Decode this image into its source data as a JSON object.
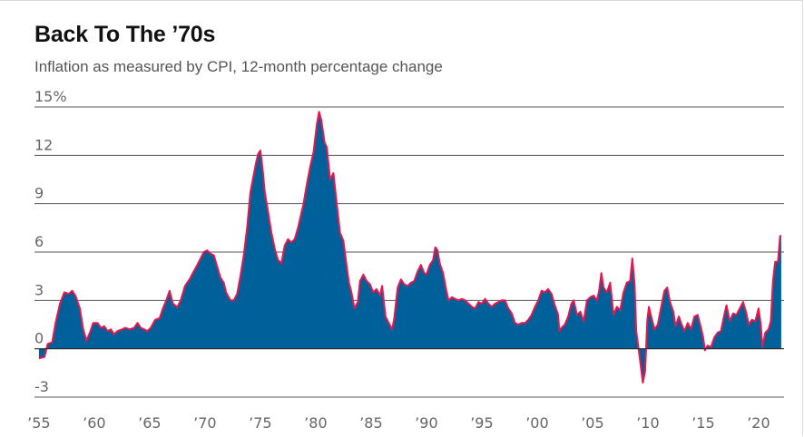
{
  "header": {
    "title": "Back To The ’70s",
    "subtitle": "Inflation as measured by CPI, 12-month percentage change"
  },
  "chart_data": {
    "type": "area",
    "title": "Back To The ’70s",
    "subtitle": "Inflation as measured by CPI, 12-month percentage change",
    "xlabel": "",
    "ylabel": "",
    "xlim": [
      1954.6,
      2022.3
    ],
    "ylim": [
      -3,
      15
    ],
    "y_ticks": [
      {
        "value": 15,
        "label": "15%"
      },
      {
        "value": 12,
        "label": "12"
      },
      {
        "value": 9,
        "label": "9"
      },
      {
        "value": 6,
        "label": "6"
      },
      {
        "value": 3,
        "label": "3"
      },
      {
        "value": 0,
        "label": "0"
      },
      {
        "value": -3,
        "label": "-3"
      }
    ],
    "x_ticks": [
      {
        "value": 1955,
        "label": "’55"
      },
      {
        "value": 1960,
        "label": "’60"
      },
      {
        "value": 1965,
        "label": "’65"
      },
      {
        "value": 1970,
        "label": "’70"
      },
      {
        "value": 1975,
        "label": "’75"
      },
      {
        "value": 1980,
        "label": "’80"
      },
      {
        "value": 1985,
        "label": "’85"
      },
      {
        "value": 1990,
        "label": "’90"
      },
      {
        "value": 1995,
        "label": "’95"
      },
      {
        "value": 2000,
        "label": "’00"
      },
      {
        "value": 2005,
        "label": "’05"
      },
      {
        "value": 2010,
        "label": "’10"
      },
      {
        "value": 2015,
        "label": "’15"
      },
      {
        "value": 2020,
        "label": "’20"
      }
    ],
    "grid": true,
    "colors": {
      "fill": "#00609a",
      "line": "#e8174d",
      "grid": "#5a5a5a",
      "zero": "#2a2a2a"
    },
    "series": [
      {
        "name": "CPI 12-month % change",
        "points": [
          [
            1955.0,
            -0.6
          ],
          [
            1955.5,
            -0.5
          ],
          [
            1955.8,
            0.3
          ],
          [
            1956.2,
            0.4
          ],
          [
            1956.5,
            1.6
          ],
          [
            1956.9,
            2.8
          ],
          [
            1957.3,
            3.5
          ],
          [
            1957.7,
            3.4
          ],
          [
            1958.0,
            3.6
          ],
          [
            1958.3,
            3.3
          ],
          [
            1958.7,
            2.5
          ],
          [
            1959.0,
            1.2
          ],
          [
            1959.3,
            0.5
          ],
          [
            1959.6,
            1.0
          ],
          [
            1959.9,
            1.6
          ],
          [
            1960.3,
            1.6
          ],
          [
            1960.6,
            1.3
          ],
          [
            1960.9,
            1.4
          ],
          [
            1961.2,
            1.1
          ],
          [
            1961.5,
            1.2
          ],
          [
            1961.8,
            0.9
          ],
          [
            1962.1,
            1.1
          ],
          [
            1962.5,
            1.2
          ],
          [
            1962.8,
            1.3
          ],
          [
            1963.2,
            1.2
          ],
          [
            1963.6,
            1.3
          ],
          [
            1963.9,
            1.6
          ],
          [
            1964.2,
            1.3
          ],
          [
            1964.5,
            1.2
          ],
          [
            1964.8,
            1.1
          ],
          [
            1965.1,
            1.3
          ],
          [
            1965.5,
            1.8
          ],
          [
            1965.9,
            1.9
          ],
          [
            1966.2,
            2.5
          ],
          [
            1966.5,
            3.0
          ],
          [
            1966.8,
            3.6
          ],
          [
            1967.1,
            2.8
          ],
          [
            1967.5,
            2.6
          ],
          [
            1967.8,
            3.0
          ],
          [
            1968.2,
            3.9
          ],
          [
            1968.6,
            4.3
          ],
          [
            1968.9,
            4.7
          ],
          [
            1969.3,
            5.2
          ],
          [
            1969.6,
            5.6
          ],
          [
            1969.9,
            6.0
          ],
          [
            1970.2,
            6.1
          ],
          [
            1970.5,
            5.9
          ],
          [
            1970.8,
            5.8
          ],
          [
            1971.1,
            5.1
          ],
          [
            1971.4,
            4.4
          ],
          [
            1971.7,
            4.1
          ],
          [
            1971.9,
            3.5
          ],
          [
            1972.3,
            3.0
          ],
          [
            1972.6,
            3.0
          ],
          [
            1972.9,
            3.4
          ],
          [
            1973.2,
            4.5
          ],
          [
            1973.5,
            5.8
          ],
          [
            1973.8,
            7.5
          ],
          [
            1974.1,
            9.7
          ],
          [
            1974.4,
            10.8
          ],
          [
            1974.6,
            11.5
          ],
          [
            1974.8,
            12.1
          ],
          [
            1975.0,
            12.3
          ],
          [
            1975.2,
            11.2
          ],
          [
            1975.4,
            9.7
          ],
          [
            1975.7,
            8.5
          ],
          [
            1976.0,
            7.2
          ],
          [
            1976.3,
            6.2
          ],
          [
            1976.6,
            5.5
          ],
          [
            1976.9,
            5.3
          ],
          [
            1977.2,
            6.4
          ],
          [
            1977.5,
            6.8
          ],
          [
            1977.8,
            6.6
          ],
          [
            1978.1,
            6.8
          ],
          [
            1978.4,
            7.5
          ],
          [
            1978.7,
            8.4
          ],
          [
            1978.9,
            9.0
          ],
          [
            1979.2,
            10.2
          ],
          [
            1979.5,
            11.3
          ],
          [
            1979.8,
            12.2
          ],
          [
            1980.1,
            13.9
          ],
          [
            1980.3,
            14.7
          ],
          [
            1980.5,
            14.2
          ],
          [
            1980.8,
            12.8
          ],
          [
            1981.0,
            12.5
          ],
          [
            1981.3,
            10.5
          ],
          [
            1981.6,
            10.9
          ],
          [
            1981.9,
            9.0
          ],
          [
            1982.2,
            7.2
          ],
          [
            1982.5,
            6.7
          ],
          [
            1982.8,
            5.1
          ],
          [
            1983.0,
            4.1
          ],
          [
            1983.2,
            3.6
          ],
          [
            1983.5,
            2.5
          ],
          [
            1983.8,
            2.9
          ],
          [
            1984.0,
            4.2
          ],
          [
            1984.3,
            4.6
          ],
          [
            1984.6,
            4.2
          ],
          [
            1984.9,
            4.0
          ],
          [
            1985.2,
            3.5
          ],
          [
            1985.5,
            3.7
          ],
          [
            1985.8,
            3.3
          ],
          [
            1986.0,
            3.9
          ],
          [
            1986.3,
            2.0
          ],
          [
            1986.6,
            1.6
          ],
          [
            1986.9,
            1.2
          ],
          [
            1987.1,
            1.9
          ],
          [
            1987.4,
            3.8
          ],
          [
            1987.7,
            4.3
          ],
          [
            1988.0,
            4.0
          ],
          [
            1988.3,
            3.9
          ],
          [
            1988.6,
            4.1
          ],
          [
            1988.9,
            4.2
          ],
          [
            1989.2,
            4.8
          ],
          [
            1989.5,
            5.2
          ],
          [
            1989.8,
            4.7
          ],
          [
            1990.0,
            4.6
          ],
          [
            1990.3,
            5.2
          ],
          [
            1990.6,
            5.5
          ],
          [
            1990.8,
            6.3
          ],
          [
            1991.0,
            6.1
          ],
          [
            1991.2,
            5.3
          ],
          [
            1991.5,
            4.7
          ],
          [
            1991.8,
            3.6
          ],
          [
            1992.0,
            3.0
          ],
          [
            1992.3,
            3.2
          ],
          [
            1992.6,
            3.1
          ],
          [
            1992.9,
            3.0
          ],
          [
            1993.2,
            3.1
          ],
          [
            1993.5,
            3.0
          ],
          [
            1993.8,
            2.8
          ],
          [
            1994.1,
            2.6
          ],
          [
            1994.4,
            2.5
          ],
          [
            1994.7,
            2.9
          ],
          [
            1995.0,
            2.8
          ],
          [
            1995.3,
            3.1
          ],
          [
            1995.6,
            2.8
          ],
          [
            1995.9,
            2.6
          ],
          [
            1996.2,
            2.8
          ],
          [
            1996.5,
            2.9
          ],
          [
            1996.8,
            3.0
          ],
          [
            1997.1,
            3.0
          ],
          [
            1997.4,
            2.5
          ],
          [
            1997.7,
            2.2
          ],
          [
            1998.0,
            1.6
          ],
          [
            1998.3,
            1.5
          ],
          [
            1998.6,
            1.6
          ],
          [
            1998.9,
            1.6
          ],
          [
            1999.2,
            1.8
          ],
          [
            1999.5,
            2.1
          ],
          [
            1999.8,
            2.6
          ],
          [
            2000.1,
            3.0
          ],
          [
            2000.4,
            3.6
          ],
          [
            2000.7,
            3.5
          ],
          [
            2001.0,
            3.7
          ],
          [
            2001.3,
            3.4
          ],
          [
            2001.6,
            2.7
          ],
          [
            2001.9,
            2.1
          ],
          [
            2002.0,
            1.1
          ],
          [
            2002.2,
            1.3
          ],
          [
            2002.5,
            1.5
          ],
          [
            2002.8,
            2.0
          ],
          [
            2003.1,
            2.8
          ],
          [
            2003.3,
            3.0
          ],
          [
            2003.6,
            2.1
          ],
          [
            2003.9,
            2.3
          ],
          [
            2004.2,
            1.7
          ],
          [
            2004.5,
            3.0
          ],
          [
            2004.8,
            3.2
          ],
          [
            2005.1,
            3.3
          ],
          [
            2005.4,
            3.0
          ],
          [
            2005.6,
            3.6
          ],
          [
            2005.8,
            4.7
          ],
          [
            2006.0,
            3.8
          ],
          [
            2006.3,
            3.5
          ],
          [
            2006.6,
            4.1
          ],
          [
            2006.9,
            2.1
          ],
          [
            2007.2,
            2.6
          ],
          [
            2007.5,
            2.4
          ],
          [
            2007.8,
            3.5
          ],
          [
            2008.1,
            4.1
          ],
          [
            2008.4,
            4.2
          ],
          [
            2008.6,
            5.6
          ],
          [
            2008.8,
            4.0
          ],
          [
            2008.95,
            1.1
          ],
          [
            2009.2,
            -0.2
          ],
          [
            2009.4,
            -1.3
          ],
          [
            2009.55,
            -2.1
          ],
          [
            2009.75,
            -1.4
          ],
          [
            2009.95,
            1.8
          ],
          [
            2010.1,
            2.6
          ],
          [
            2010.3,
            2.0
          ],
          [
            2010.6,
            1.2
          ],
          [
            2010.9,
            1.5
          ],
          [
            2011.2,
            2.6
          ],
          [
            2011.5,
            3.6
          ],
          [
            2011.75,
            3.8
          ],
          [
            2012.0,
            2.9
          ],
          [
            2012.3,
            2.3
          ],
          [
            2012.5,
            1.4
          ],
          [
            2012.8,
            2.0
          ],
          [
            2013.0,
            1.6
          ],
          [
            2013.3,
            1.1
          ],
          [
            2013.6,
            1.6
          ],
          [
            2013.9,
            1.2
          ],
          [
            2014.2,
            2.0
          ],
          [
            2014.5,
            2.1
          ],
          [
            2014.8,
            1.3
          ],
          [
            2015.0,
            0.7
          ],
          [
            2015.15,
            -0.1
          ],
          [
            2015.4,
            0.2
          ],
          [
            2015.7,
            0.1
          ],
          [
            2016.0,
            0.7
          ],
          [
            2016.3,
            1.0
          ],
          [
            2016.6,
            1.1
          ],
          [
            2016.9,
            2.1
          ],
          [
            2017.1,
            2.7
          ],
          [
            2017.4,
            1.7
          ],
          [
            2017.7,
            2.2
          ],
          [
            2018.0,
            2.1
          ],
          [
            2018.3,
            2.5
          ],
          [
            2018.6,
            2.9
          ],
          [
            2018.9,
            2.2
          ],
          [
            2019.1,
            1.5
          ],
          [
            2019.4,
            1.8
          ],
          [
            2019.7,
            1.7
          ],
          [
            2020.0,
            2.5
          ],
          [
            2020.2,
            1.5
          ],
          [
            2020.35,
            0.1
          ],
          [
            2020.6,
            1.0
          ],
          [
            2020.9,
            1.2
          ],
          [
            2021.1,
            1.7
          ],
          [
            2021.3,
            4.2
          ],
          [
            2021.5,
            5.4
          ],
          [
            2021.75,
            5.4
          ],
          [
            2021.95,
            7.0
          ],
          [
            2022.05,
            7.0
          ]
        ]
      }
    ]
  }
}
